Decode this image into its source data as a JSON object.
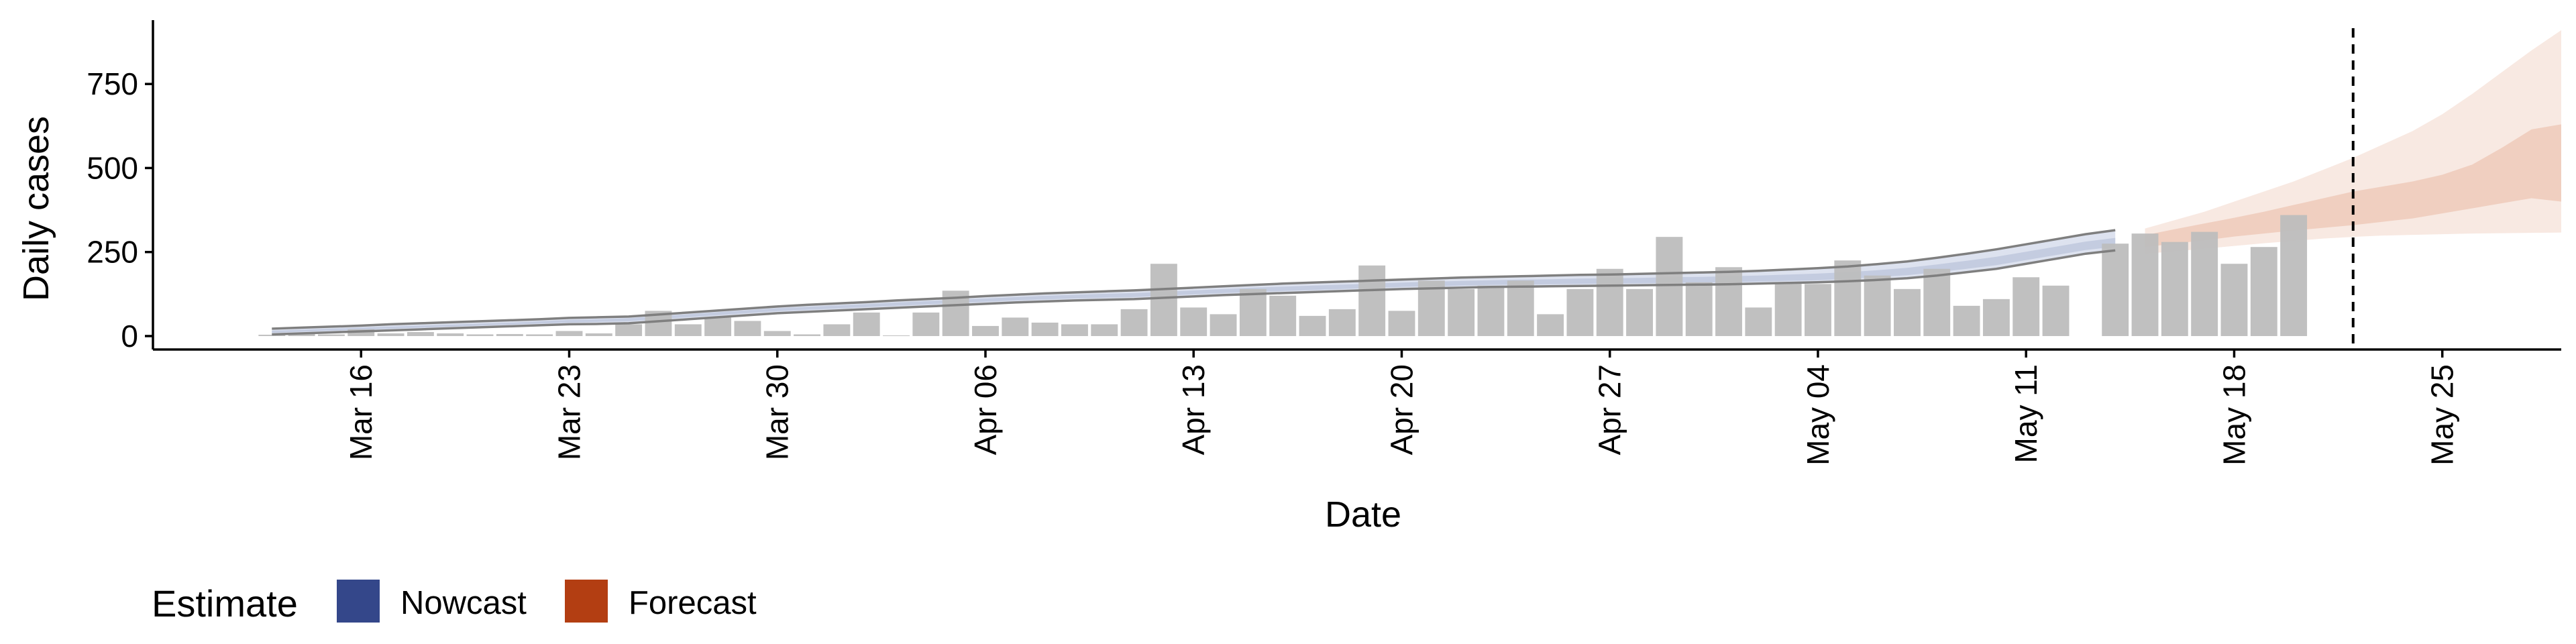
{
  "chart_data": {
    "type": "bar",
    "xlabel": "Date",
    "ylabel": "Daily cases",
    "ylim": [
      -40,
      940
    ],
    "x_range": [
      "2020-03-09",
      "2020-05-29"
    ],
    "y_ticks": [
      0,
      250,
      500,
      750
    ],
    "y_tick_labels": [
      "0",
      "250",
      "500",
      "750"
    ],
    "x_ticks": [
      "2020-03-16",
      "2020-03-23",
      "2020-03-30",
      "2020-04-06",
      "2020-04-13",
      "2020-04-20",
      "2020-04-27",
      "2020-05-04",
      "2020-05-11",
      "2020-05-18",
      "2020-05-25"
    ],
    "x_tick_labels": [
      "Mar 16",
      "Mar 23",
      "Mar 30",
      "Apr 06",
      "Apr 13",
      "Apr 20",
      "Apr 27",
      "May 04",
      "May 11",
      "May 18",
      "May 25"
    ],
    "grid": false,
    "legend_position": "bottom-left",
    "vline_date": "2020-05-22",
    "reported_cases": {
      "start_date": "2020-03-13",
      "values": [
        4,
        6,
        5,
        20,
        8,
        12,
        8,
        5,
        6,
        5,
        15,
        8,
        35,
        75,
        35,
        55,
        45,
        15,
        5,
        35,
        70,
        2,
        70,
        135,
        30,
        55,
        40,
        35,
        35,
        80,
        215,
        85,
        65,
        140,
        120,
        60,
        80,
        210,
        75,
        165,
        140,
        150,
        165,
        65,
        140,
        200,
        140,
        295,
        160,
        205,
        85,
        160,
        155,
        225,
        180,
        140,
        200,
        90,
        110,
        175,
        150,
        0,
        275,
        305,
        280,
        310,
        215,
        265,
        360
      ]
    },
    "nowcast": {
      "start_date": "2020-03-13",
      "lower_outer": [
        5,
        8,
        11,
        14,
        17,
        20,
        23,
        26,
        29,
        32,
        35,
        36,
        38,
        44,
        50,
        56,
        62,
        68,
        72,
        76,
        80,
        84,
        88,
        92,
        96,
        100,
        103,
        106,
        108,
        110,
        114,
        118,
        122,
        125,
        128,
        131,
        134,
        137,
        140,
        142,
        144,
        146,
        147,
        148,
        149,
        150,
        151,
        152,
        153,
        154,
        156,
        158,
        160,
        163,
        167,
        172,
        180,
        190,
        200,
        215,
        230,
        245,
        255
      ],
      "lower_inner": [
        10,
        13,
        16,
        19,
        22,
        25,
        28,
        31,
        34,
        37,
        40,
        42,
        44,
        50,
        56,
        62,
        68,
        74,
        78,
        82,
        86,
        90,
        94,
        98,
        102,
        106,
        109,
        112,
        114,
        116,
        120,
        124,
        128,
        131,
        134,
        137,
        140,
        143,
        146,
        148,
        150,
        152,
        153,
        154,
        155,
        156,
        157,
        158,
        159,
        160,
        162,
        164,
        166,
        170,
        175,
        181,
        190,
        200,
        211,
        226,
        241,
        256,
        266
      ],
      "upper_inner": [
        16,
        19,
        22,
        25,
        28,
        31,
        34,
        37,
        40,
        44,
        48,
        50,
        53,
        59,
        65,
        71,
        77,
        83,
        87,
        91,
        95,
        100,
        104,
        108,
        112,
        116,
        120,
        123,
        126,
        128,
        132,
        136,
        140,
        144,
        147,
        150,
        153,
        156,
        159,
        162,
        164,
        166,
        168,
        169,
        171,
        172,
        173,
        175,
        176,
        178,
        180,
        183,
        186,
        190,
        196,
        203,
        213,
        224,
        236,
        251,
        266,
        281,
        292
      ],
      "upper_outer": [
        22,
        25,
        28,
        31,
        35,
        38,
        41,
        44,
        47,
        50,
        54,
        56,
        58,
        64,
        70,
        76,
        82,
        88,
        93,
        97,
        101,
        106,
        110,
        114,
        119,
        123,
        127,
        130,
        133,
        136,
        140,
        144,
        148,
        152,
        156,
        159,
        162,
        165,
        168,
        171,
        174,
        176,
        178,
        180,
        182,
        183,
        185,
        187,
        189,
        191,
        194,
        198,
        202,
        207,
        214,
        222,
        233,
        245,
        258,
        273,
        288,
        303,
        315
      ]
    },
    "forecast": {
      "start_date": "2020-05-15",
      "lower_outer": [
        245,
        252,
        260,
        268,
        276,
        283,
        290,
        295,
        299,
        301,
        303,
        305,
        306,
        307,
        308
      ],
      "lower_inner": [
        265,
        275,
        285,
        296,
        305,
        314,
        322,
        330,
        340,
        350,
        365,
        380,
        395,
        410,
        400
      ],
      "upper_inner": [
        300,
        318,
        335,
        352,
        370,
        390,
        410,
        430,
        445,
        460,
        480,
        510,
        560,
        615,
        630
      ],
      "upper_outer": [
        320,
        345,
        370,
        400,
        430,
        460,
        495,
        530,
        570,
        610,
        660,
        720,
        785,
        850,
        910
      ]
    },
    "legend": {
      "title": "Estimate",
      "items": [
        {
          "label": "Nowcast",
          "color": "#34478A"
        },
        {
          "label": "Forecast",
          "color": "#B33E12"
        }
      ]
    },
    "colors": {
      "bar": "#BDBDBD",
      "nowcast_outer": "#DDE2EF",
      "nowcast_inner": "#C4CCE0",
      "nowcast_line": "#7F7F7F",
      "forecast_outer": "#F8E9E2",
      "forecast_inner": "#F0CFC0",
      "vline": "#000000"
    }
  }
}
